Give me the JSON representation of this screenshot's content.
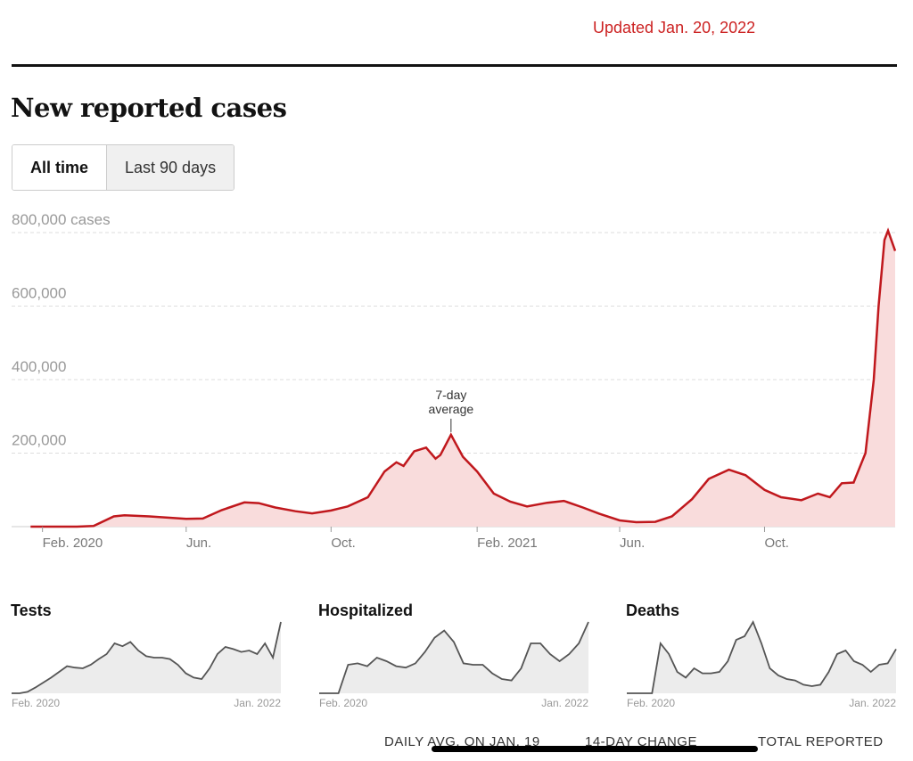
{
  "header": {
    "updated": "Updated Jan. 20, 2022",
    "title": "New reported cases"
  },
  "tabs": [
    {
      "label": "All time",
      "active": true
    },
    {
      "label": "Last 90 days",
      "active": false
    }
  ],
  "colors": {
    "accent": "#c22",
    "line": "#c0181d",
    "area": "#f9dcdc",
    "small_line": "#555",
    "small_area": "#ececec"
  },
  "chart_data": {
    "type": "area",
    "ylim": [
      0,
      800000
    ],
    "yticks": [
      {
        "value": 200000,
        "label": "200,000"
      },
      {
        "value": 400000,
        "label": "400,000"
      },
      {
        "value": 600000,
        "label": "600,000"
      },
      {
        "value": 800000,
        "label": "800,000 cases"
      }
    ],
    "xticks": [
      {
        "date": "2020-02-01",
        "label": "Feb. 2020"
      },
      {
        "date": "2020-06-01",
        "label": "Jun."
      },
      {
        "date": "2020-10-01",
        "label": "Oct."
      },
      {
        "date": "2021-02-01",
        "label": "Feb. 2021"
      },
      {
        "date": "2021-06-01",
        "label": "Jun."
      },
      {
        "date": "2021-10-01",
        "label": "Oct."
      }
    ],
    "xlim": [
      "2020-01-21",
      "2022-01-19"
    ],
    "grid": true,
    "annotation": {
      "line1": "7-day",
      "line2": "average",
      "date": "2021-01-10"
    },
    "series": [
      {
        "values": [
          [
            "2020-01-22",
            0
          ],
          [
            "2020-03-01",
            0
          ],
          [
            "2020-03-15",
            2000
          ],
          [
            "2020-04-01",
            28000
          ],
          [
            "2020-04-10",
            31000
          ],
          [
            "2020-05-01",
            28000
          ],
          [
            "2020-06-01",
            21000
          ],
          [
            "2020-06-15",
            22000
          ],
          [
            "2020-07-01",
            45000
          ],
          [
            "2020-07-20",
            66000
          ],
          [
            "2020-08-01",
            64000
          ],
          [
            "2020-08-15",
            52000
          ],
          [
            "2020-09-01",
            42000
          ],
          [
            "2020-09-15",
            36000
          ],
          [
            "2020-10-01",
            44000
          ],
          [
            "2020-10-15",
            55000
          ],
          [
            "2020-11-01",
            80000
          ],
          [
            "2020-11-15",
            150000
          ],
          [
            "2020-11-25",
            175000
          ],
          [
            "2020-12-01",
            165000
          ],
          [
            "2020-12-10",
            205000
          ],
          [
            "2020-12-20",
            215000
          ],
          [
            "2020-12-28",
            185000
          ],
          [
            "2021-01-01",
            195000
          ],
          [
            "2021-01-10",
            250000
          ],
          [
            "2021-01-20",
            190000
          ],
          [
            "2021-02-01",
            150000
          ],
          [
            "2021-02-15",
            90000
          ],
          [
            "2021-03-01",
            68000
          ],
          [
            "2021-03-15",
            55000
          ],
          [
            "2021-04-01",
            65000
          ],
          [
            "2021-04-15",
            70000
          ],
          [
            "2021-05-01",
            52000
          ],
          [
            "2021-05-15",
            35000
          ],
          [
            "2021-06-01",
            17000
          ],
          [
            "2021-06-15",
            12000
          ],
          [
            "2021-07-01",
            13000
          ],
          [
            "2021-07-15",
            28000
          ],
          [
            "2021-08-01",
            75000
          ],
          [
            "2021-08-15",
            130000
          ],
          [
            "2021-09-01",
            155000
          ],
          [
            "2021-09-15",
            140000
          ],
          [
            "2021-10-01",
            100000
          ],
          [
            "2021-10-15",
            80000
          ],
          [
            "2021-11-01",
            72000
          ],
          [
            "2021-11-15",
            90000
          ],
          [
            "2021-11-25",
            80000
          ],
          [
            "2021-12-05",
            118000
          ],
          [
            "2021-12-15",
            120000
          ],
          [
            "2021-12-25",
            200000
          ],
          [
            "2022-01-01",
            400000
          ],
          [
            "2022-01-05",
            600000
          ],
          [
            "2022-01-10",
            780000
          ],
          [
            "2022-01-13",
            805000
          ],
          [
            "2022-01-19",
            750000
          ]
        ]
      }
    ]
  },
  "small_charts": [
    {
      "title": "Tests",
      "start": "Feb. 2020",
      "end": "Jan. 2022",
      "values": [
        0,
        0,
        2,
        8,
        15,
        22,
        30,
        38,
        36,
        35,
        40,
        48,
        55,
        70,
        66,
        72,
        60,
        52,
        50,
        50,
        48,
        40,
        28,
        22,
        20,
        35,
        55,
        65,
        62,
        58,
        60,
        55,
        70,
        50,
        100
      ]
    },
    {
      "title": "Hospitalized",
      "start": "Feb. 2020",
      "end": "Jan. 2022",
      "values": [
        0,
        0,
        0,
        40,
        42,
        38,
        50,
        45,
        38,
        36,
        42,
        58,
        78,
        88,
        72,
        42,
        40,
        40,
        28,
        20,
        18,
        35,
        70,
        70,
        55,
        45,
        55,
        70,
        100
      ]
    },
    {
      "title": "Deaths",
      "start": "Feb. 2020",
      "end": "Jan. 2022",
      "values": [
        0,
        0,
        0,
        0,
        70,
        55,
        30,
        22,
        35,
        28,
        28,
        30,
        45,
        75,
        80,
        100,
        70,
        35,
        25,
        20,
        18,
        12,
        10,
        12,
        30,
        55,
        60,
        45,
        40,
        30,
        40,
        42,
        62
      ]
    }
  ],
  "footer": {
    "daily_avg": "DAILY AVG. ON JAN. 19",
    "change": "14-DAY CHANGE",
    "total": "TOTAL REPORTED"
  }
}
